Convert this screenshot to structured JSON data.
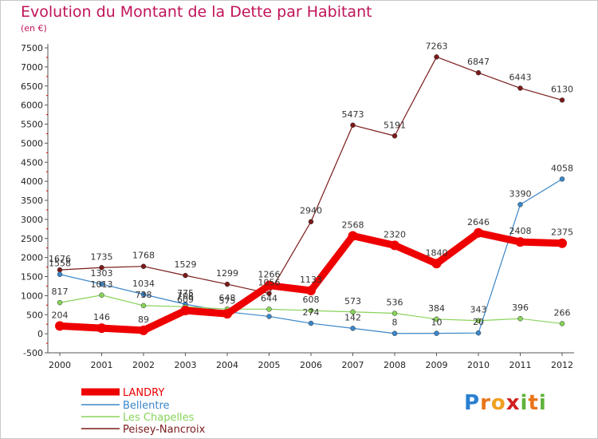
{
  "chart_data": {
    "type": "line",
    "title": "Evolution du Montant de la Dette par Habitant",
    "subtitle": "(en €)",
    "xlabel": "",
    "ylabel": "",
    "x": [
      "2000",
      "2001",
      "2002",
      "2003",
      "2004",
      "2005",
      "2006",
      "2007",
      "2008",
      "2009",
      "2010",
      "2011",
      "2012"
    ],
    "ylim": [
      -500,
      7500
    ],
    "yticks": [
      -500,
      0,
      500,
      1000,
      1500,
      2000,
      2500,
      3000,
      3500,
      4000,
      4500,
      5000,
      5500,
      6000,
      6500,
      7000,
      7500
    ],
    "grid": false,
    "legend_position": "bottom-left",
    "series": [
      {
        "name": "LANDRY",
        "color": "#ee0000",
        "values": [
          204,
          146,
          89,
          609,
          523,
          1266,
          1133,
          2568,
          2320,
          1840,
          2646,
          2408,
          2375
        ],
        "labels": [
          "204",
          "146",
          "89",
          "609",
          "",
          "1266",
          "1133",
          "2568",
          "2320",
          "1840",
          "2646",
          "2408",
          "2375"
        ]
      },
      {
        "name": "Bellentre",
        "color": "#3a86c8",
        "values": [
          1558,
          1303,
          1034,
          775,
          575,
          454,
          274,
          142,
          8,
          10,
          20,
          3390,
          4058
        ],
        "labels": [
          "1558",
          "1303",
          "1034",
          "775",
          "575",
          "",
          "274",
          "142",
          "8",
          "10",
          "20",
          "3390",
          "4058"
        ]
      },
      {
        "name": "Les Chapelles",
        "color": "#88d35a",
        "values": [
          817,
          1013,
          738,
          708,
          648,
          644,
          608,
          573,
          536,
          384,
          343,
          396,
          266
        ],
        "labels": [
          "817",
          "1013",
          "738",
          "708",
          "648",
          "644",
          "608",
          "573",
          "536",
          "384",
          "343",
          "396",
          "266"
        ]
      },
      {
        "name": "Peisey-Nancroix",
        "color": "#7a1a1a",
        "values": [
          1676,
          1735,
          1768,
          1529,
          1299,
          1056,
          2940,
          5473,
          5191,
          7263,
          6847,
          6443,
          6130
        ],
        "labels": [
          "1676",
          "1735",
          "1768",
          "1529",
          "1299",
          "1056",
          "2940",
          "5473",
          "5191",
          "7263",
          "6847",
          "6443",
          "6130"
        ]
      }
    ]
  },
  "logo": {
    "letters": [
      "P",
      "r",
      "o",
      "x",
      "i",
      "t",
      "i"
    ],
    "colors": [
      "#2a7fd0",
      "#e8751a",
      "#f0a020",
      "#d12020",
      "#5fb33a",
      "#e8751a",
      "#5fb33a"
    ]
  }
}
